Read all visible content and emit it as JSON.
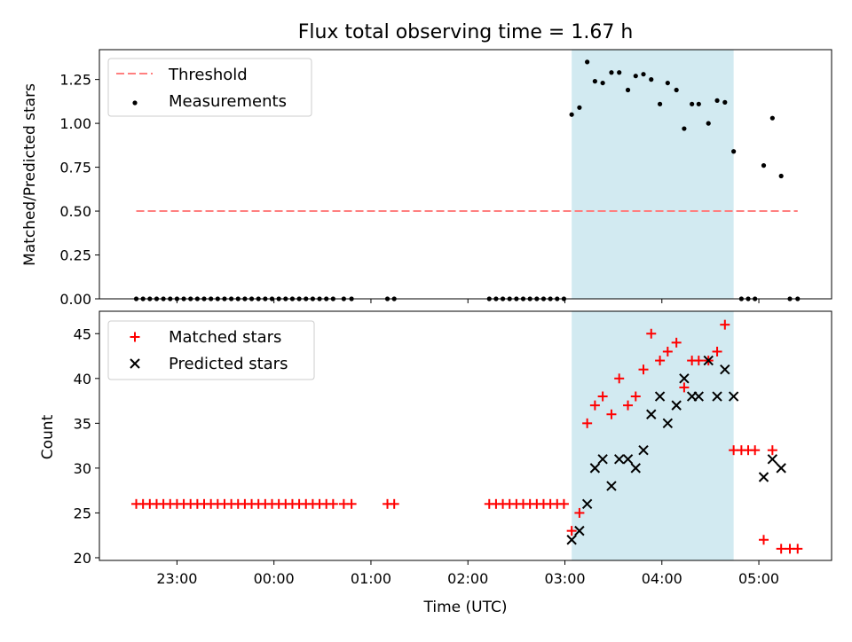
{
  "chart_data": {
    "title": "Flux total observing time = 1.67 h",
    "shared_x": {
      "label": "Time (UTC)",
      "unit": "hours UTC, continuous past midnight (24 = 00:00, 29 = 05:00)",
      "range": [
        22.2,
        29.75
      ],
      "ticks": [
        {
          "value": 23,
          "label": "23:00"
        },
        {
          "value": 24,
          "label": "00:00"
        },
        {
          "value": 25,
          "label": "01:00"
        },
        {
          "value": 26,
          "label": "02:00"
        },
        {
          "value": 27,
          "label": "03:00"
        },
        {
          "value": 28,
          "label": "04:00"
        },
        {
          "value": 29,
          "label": "05:00"
        }
      ]
    },
    "observing_window": {
      "x_start": 27.07,
      "x_end": 28.74,
      "color": "#add8e6"
    },
    "top_panel": {
      "type": "scatter",
      "ylabel": "Matched/Predicted stars",
      "ylim": [
        0,
        1.42
      ],
      "yticks": [
        "0.00",
        "0.25",
        "0.50",
        "0.75",
        "1.00",
        "1.25"
      ],
      "legend_position": "upper-left",
      "threshold": {
        "name": "Threshold",
        "value": 0.5,
        "x_start": 22.58,
        "x_end": 29.4,
        "color": "#ff7f7f",
        "style": "dashed"
      },
      "series": {
        "name": "Measurements",
        "color": "#000000",
        "x": [
          22.58,
          22.65,
          22.72,
          22.79,
          22.86,
          22.93,
          23.0,
          23.07,
          23.14,
          23.21,
          23.28,
          23.35,
          23.42,
          23.49,
          23.56,
          23.63,
          23.7,
          23.77,
          23.84,
          23.91,
          23.98,
          24.05,
          24.12,
          24.19,
          24.26,
          24.33,
          24.4,
          24.47,
          24.54,
          24.61,
          24.72,
          24.8,
          25.17,
          25.24,
          26.22,
          26.29,
          26.36,
          26.43,
          26.5,
          26.57,
          26.64,
          26.71,
          26.78,
          26.85,
          26.92,
          26.99,
          27.07,
          27.15,
          27.23,
          27.31,
          27.39,
          27.48,
          27.56,
          27.65,
          27.73,
          27.81,
          27.89,
          27.98,
          28.06,
          28.15,
          28.23,
          28.31,
          28.38,
          28.48,
          28.57,
          28.65,
          28.74,
          28.82,
          28.89,
          28.96,
          29.05,
          29.14,
          29.23,
          29.32,
          29.4
        ],
        "y": [
          0,
          0,
          0,
          0,
          0,
          0,
          0,
          0,
          0,
          0,
          0,
          0,
          0,
          0,
          0,
          0,
          0,
          0,
          0,
          0,
          0,
          0,
          0,
          0,
          0,
          0,
          0,
          0,
          0,
          0,
          0,
          0,
          0,
          0,
          0,
          0,
          0,
          0,
          0,
          0,
          0,
          0,
          0,
          0,
          0,
          0,
          1.05,
          1.09,
          1.35,
          1.24,
          1.23,
          1.29,
          1.29,
          1.19,
          1.27,
          1.28,
          1.25,
          1.11,
          1.23,
          1.19,
          0.97,
          1.11,
          1.11,
          1.0,
          1.13,
          1.12,
          0.84,
          0,
          0,
          0,
          0.76,
          1.03,
          0.7,
          0,
          0
        ]
      }
    },
    "bottom_panel": {
      "type": "scatter",
      "ylabel": "Count",
      "ylim": [
        19.7,
        47.5
      ],
      "yticks": [
        "20",
        "25",
        "30",
        "35",
        "40",
        "45"
      ],
      "legend_position": "upper-left",
      "series": [
        {
          "name": "Matched stars",
          "marker": "+",
          "color": "#ff0000",
          "x": [
            22.58,
            22.65,
            22.72,
            22.79,
            22.86,
            22.93,
            23.0,
            23.07,
            23.14,
            23.21,
            23.28,
            23.35,
            23.42,
            23.49,
            23.56,
            23.63,
            23.7,
            23.77,
            23.84,
            23.91,
            23.98,
            24.05,
            24.12,
            24.19,
            24.26,
            24.33,
            24.4,
            24.47,
            24.54,
            24.61,
            24.72,
            24.8,
            25.17,
            25.24,
            26.22,
            26.29,
            26.36,
            26.43,
            26.5,
            26.57,
            26.64,
            26.71,
            26.78,
            26.85,
            26.92,
            26.99,
            27.07,
            27.15,
            27.23,
            27.31,
            27.39,
            27.48,
            27.56,
            27.65,
            27.73,
            27.81,
            27.89,
            27.98,
            28.06,
            28.15,
            28.23,
            28.31,
            28.38,
            28.48,
            28.57,
            28.65,
            28.74,
            28.82,
            28.89,
            28.96,
            29.05,
            29.14,
            29.23,
            29.32,
            29.4
          ],
          "y": [
            26,
            26,
            26,
            26,
            26,
            26,
            26,
            26,
            26,
            26,
            26,
            26,
            26,
            26,
            26,
            26,
            26,
            26,
            26,
            26,
            26,
            26,
            26,
            26,
            26,
            26,
            26,
            26,
            26,
            26,
            26,
            26,
            26,
            26,
            26,
            26,
            26,
            26,
            26,
            26,
            26,
            26,
            26,
            26,
            26,
            26,
            23,
            25,
            35,
            37,
            38,
            36,
            40,
            37,
            38,
            41,
            45,
            42,
            43,
            44,
            39,
            42,
            42,
            42,
            43,
            46,
            32,
            32,
            32,
            32,
            22,
            32,
            21,
            21,
            21
          ]
        },
        {
          "name": "Predicted stars",
          "marker": "x",
          "color": "#000000",
          "x": [
            27.07,
            27.15,
            27.23,
            27.31,
            27.39,
            27.48,
            27.56,
            27.65,
            27.73,
            27.81,
            27.89,
            27.98,
            28.06,
            28.15,
            28.23,
            28.31,
            28.38,
            28.48,
            28.57,
            28.65,
            28.74,
            29.05,
            29.14,
            29.23
          ],
          "y": [
            22,
            23,
            26,
            30,
            31,
            28,
            31,
            31,
            30,
            32,
            36,
            38,
            35,
            37,
            40,
            38,
            38,
            42,
            38,
            41,
            38,
            29,
            31,
            30
          ]
        }
      ]
    }
  }
}
